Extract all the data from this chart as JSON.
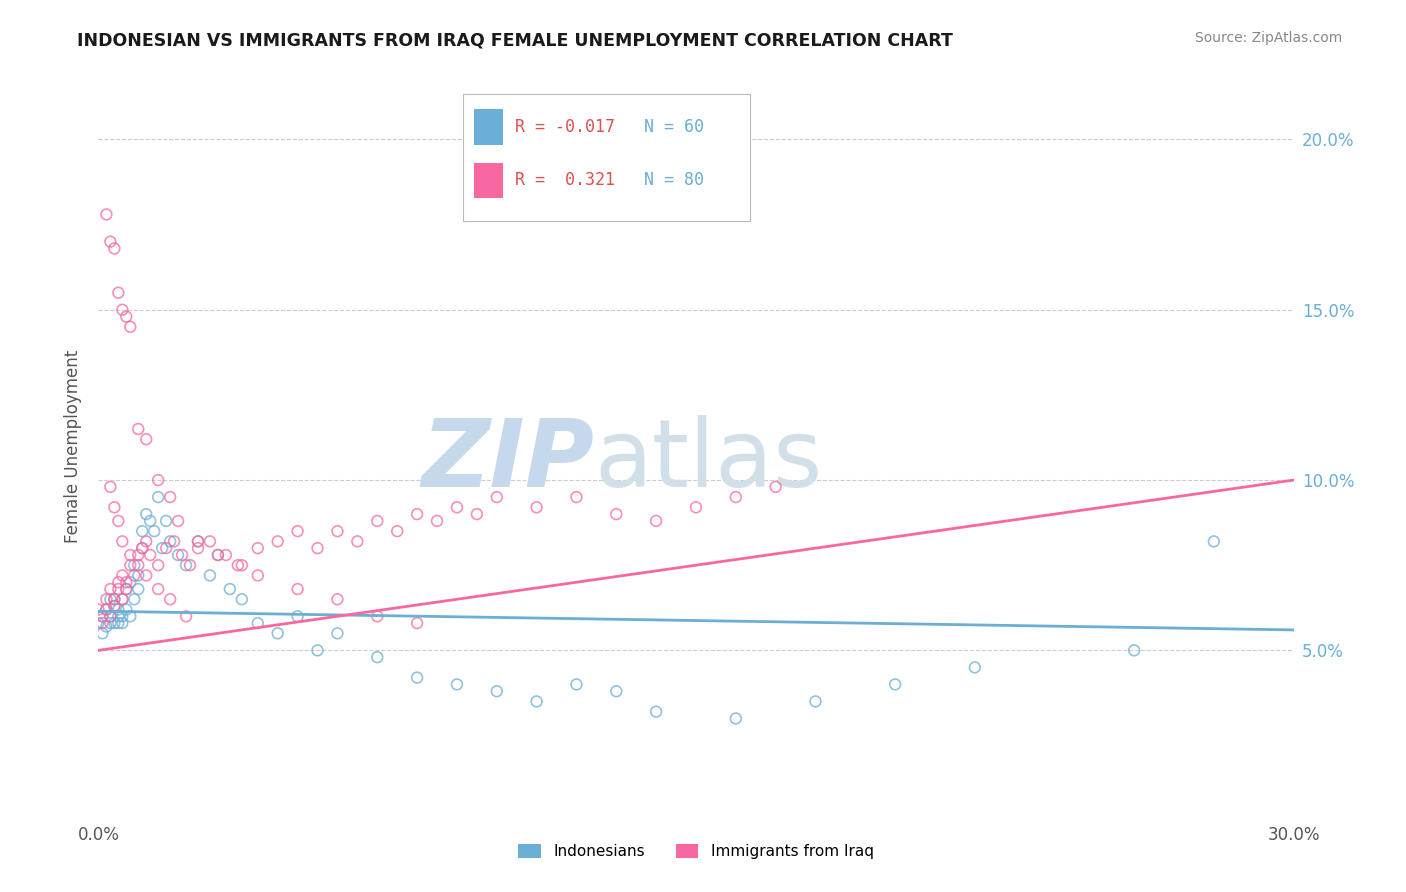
{
  "title": "INDONESIAN VS IMMIGRANTS FROM IRAQ FEMALE UNEMPLOYMENT CORRELATION CHART",
  "source": "Source: ZipAtlas.com",
  "ylabel": "Female Unemployment",
  "xmin": 0.0,
  "xmax": 0.3,
  "ymin": 0.0,
  "ymax": 0.22,
  "right_yticks": [
    0.05,
    0.1,
    0.15,
    0.2
  ],
  "right_yticklabels": [
    "5.0%",
    "10.0%",
    "15.0%",
    "20.0%"
  ],
  "xticks": [
    0.0,
    0.05,
    0.1,
    0.15,
    0.2,
    0.25,
    0.3
  ],
  "xticklabels": [
    "0.0%",
    "",
    "",
    "",
    "",
    "",
    "30.0%"
  ],
  "legend_entries": [
    {
      "label": "Indonesians",
      "R": "-0.017",
      "N": "60",
      "color": "#6baed6"
    },
    {
      "label": "Immigrants from Iraq",
      "R": "0.321",
      "N": "80",
      "color": "#f768a1"
    }
  ],
  "watermark_zip": "ZIP",
  "watermark_atlas": "atlas",
  "blue_color": "#6baed6",
  "pink_color": "#f768a1",
  "indonesian_x": [
    0.0,
    0.001,
    0.001,
    0.002,
    0.002,
    0.003,
    0.003,
    0.003,
    0.004,
    0.004,
    0.004,
    0.005,
    0.005,
    0.005,
    0.006,
    0.006,
    0.006,
    0.007,
    0.007,
    0.008,
    0.008,
    0.009,
    0.009,
    0.01,
    0.01,
    0.011,
    0.011,
    0.012,
    0.013,
    0.014,
    0.015,
    0.016,
    0.017,
    0.018,
    0.02,
    0.022,
    0.025,
    0.028,
    0.03,
    0.033,
    0.036,
    0.04,
    0.045,
    0.05,
    0.055,
    0.06,
    0.07,
    0.08,
    0.09,
    0.1,
    0.11,
    0.12,
    0.13,
    0.14,
    0.16,
    0.18,
    0.2,
    0.22,
    0.26,
    0.28
  ],
  "indonesian_y": [
    0.058,
    0.06,
    0.055,
    0.062,
    0.057,
    0.065,
    0.06,
    0.058,
    0.063,
    0.058,
    0.065,
    0.062,
    0.058,
    0.06,
    0.065,
    0.06,
    0.058,
    0.068,
    0.062,
    0.07,
    0.06,
    0.075,
    0.065,
    0.068,
    0.072,
    0.08,
    0.085,
    0.09,
    0.088,
    0.085,
    0.095,
    0.08,
    0.088,
    0.082,
    0.078,
    0.075,
    0.082,
    0.072,
    0.078,
    0.068,
    0.065,
    0.058,
    0.055,
    0.06,
    0.05,
    0.055,
    0.048,
    0.042,
    0.04,
    0.038,
    0.035,
    0.04,
    0.038,
    0.032,
    0.03,
    0.035,
    0.04,
    0.045,
    0.05,
    0.082
  ],
  "iraq_x": [
    0.0,
    0.001,
    0.001,
    0.002,
    0.002,
    0.003,
    0.003,
    0.004,
    0.004,
    0.005,
    0.005,
    0.006,
    0.006,
    0.007,
    0.007,
    0.008,
    0.009,
    0.01,
    0.011,
    0.012,
    0.013,
    0.015,
    0.017,
    0.019,
    0.021,
    0.023,
    0.025,
    0.028,
    0.032,
    0.036,
    0.04,
    0.045,
    0.05,
    0.055,
    0.06,
    0.065,
    0.07,
    0.075,
    0.08,
    0.085,
    0.09,
    0.095,
    0.1,
    0.11,
    0.12,
    0.13,
    0.14,
    0.15,
    0.16,
    0.17,
    0.002,
    0.003,
    0.004,
    0.005,
    0.006,
    0.007,
    0.008,
    0.01,
    0.012,
    0.015,
    0.018,
    0.02,
    0.025,
    0.03,
    0.035,
    0.04,
    0.05,
    0.06,
    0.07,
    0.08,
    0.003,
    0.004,
    0.005,
    0.006,
    0.008,
    0.01,
    0.012,
    0.015,
    0.018,
    0.022
  ],
  "iraq_y": [
    0.062,
    0.06,
    0.058,
    0.065,
    0.062,
    0.068,
    0.06,
    0.063,
    0.065,
    0.07,
    0.068,
    0.072,
    0.065,
    0.07,
    0.068,
    0.075,
    0.072,
    0.078,
    0.08,
    0.082,
    0.078,
    0.075,
    0.08,
    0.082,
    0.078,
    0.075,
    0.08,
    0.082,
    0.078,
    0.075,
    0.08,
    0.082,
    0.085,
    0.08,
    0.085,
    0.082,
    0.088,
    0.085,
    0.09,
    0.088,
    0.092,
    0.09,
    0.095,
    0.092,
    0.095,
    0.09,
    0.088,
    0.092,
    0.095,
    0.098,
    0.178,
    0.17,
    0.168,
    0.155,
    0.15,
    0.148,
    0.145,
    0.115,
    0.112,
    0.1,
    0.095,
    0.088,
    0.082,
    0.078,
    0.075,
    0.072,
    0.068,
    0.065,
    0.06,
    0.058,
    0.098,
    0.092,
    0.088,
    0.082,
    0.078,
    0.075,
    0.072,
    0.068,
    0.065,
    0.06
  ],
  "blue_trend": [
    0.0,
    0.3,
    0.0615,
    0.056
  ],
  "pink_trend": [
    0.0,
    0.3,
    0.05,
    0.1
  ]
}
